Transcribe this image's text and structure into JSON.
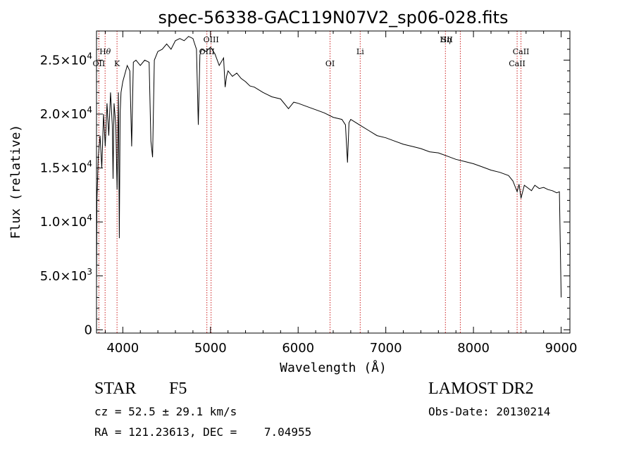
{
  "chart_data": {
    "type": "line",
    "title": "spec-56338-GAC119N07V2_sp06-028.fits",
    "xlabel": "Wavelength (Å)",
    "ylabel": "Flux (relative)",
    "xlim": [
      3700,
      9100
    ],
    "ylim": [
      -300,
      27700
    ],
    "x_ticks": [
      4000,
      5000,
      6000,
      7000,
      8000,
      9000
    ],
    "x_tick_labels": [
      "4000",
      "5000",
      "6000",
      "7000",
      "8000",
      "9000"
    ],
    "y_ticks": [
      0,
      5000,
      10000,
      15000,
      20000,
      25000
    ],
    "y_tick_labels": [
      {
        "mantissa": "0",
        "exp": ""
      },
      {
        "mantissa": "5.0×10",
        "exp": "3"
      },
      {
        "mantissa": "1.0×10",
        "exp": "4"
      },
      {
        "mantissa": "1.5×10",
        "exp": "4"
      },
      {
        "mantissa": "2.0×10",
        "exp": "4"
      },
      {
        "mantissa": "2.5×10",
        "exp": "4"
      }
    ],
    "grid": false,
    "line_color": "#000000",
    "marker_color": "#cc2222",
    "series": [
      {
        "x": [
          3700,
          3705,
          3720,
          3740,
          3760,
          3780,
          3800,
          3820,
          3840,
          3860,
          3880,
          3889,
          3900,
          3920,
          3935,
          3950,
          3960,
          3969,
          3980,
          4000,
          4050,
          4080,
          4101,
          4120,
          4150,
          4200,
          4250,
          4300,
          4320,
          4340,
          4360,
          4400,
          4450,
          4500,
          4550,
          4600,
          4650,
          4700,
          4750,
          4800,
          4820,
          4840,
          4861,
          4880,
          4900,
          4950,
          5000,
          5050,
          5100,
          5150,
          5167,
          5183,
          5200,
          5250,
          5300,
          5350,
          5400,
          5450,
          5500,
          5600,
          5700,
          5800,
          5890,
          5950,
          6000,
          6100,
          6200,
          6300,
          6400,
          6500,
          6540,
          6563,
          6580,
          6600,
          6700,
          6800,
          6900,
          7000,
          7100,
          7200,
          7300,
          7400,
          7500,
          7600,
          7700,
          7800,
          7900,
          8000,
          8100,
          8200,
          8300,
          8400,
          8450,
          8498,
          8520,
          8542,
          8580,
          8662,
          8700,
          8750,
          8800,
          8850,
          8900,
          8950,
          8980,
          9000
        ],
        "y": [
          4000,
          12000,
          16000,
          18000,
          15000,
          20000,
          17000,
          21000,
          18000,
          22000,
          19000,
          14000,
          21000,
          19000,
          13000,
          22000,
          8500,
          20000,
          22000,
          23000,
          24500,
          24000,
          17000,
          24800,
          25000,
          24500,
          25000,
          24800,
          17500,
          16000,
          25000,
          25800,
          26000,
          26500,
          26000,
          26800,
          27000,
          26800,
          27200,
          27000,
          26500,
          26000,
          19000,
          25500,
          26000,
          25800,
          26200,
          25600,
          24500,
          25200,
          22500,
          23500,
          24000,
          23500,
          23800,
          23300,
          23000,
          22600,
          22500,
          22000,
          21600,
          21400,
          20500,
          21100,
          21000,
          20700,
          20400,
          20100,
          19700,
          19500,
          19000,
          15500,
          19200,
          19500,
          19000,
          18500,
          18000,
          17800,
          17500,
          17200,
          17000,
          16800,
          16500,
          16400,
          16100,
          15800,
          15600,
          15400,
          15100,
          14800,
          14600,
          14300,
          13800,
          12800,
          13500,
          12200,
          13400,
          12900,
          13400,
          13100,
          13200,
          13000,
          12900,
          12700,
          12800,
          3000
        ]
      }
    ],
    "line_markers": [
      {
        "label": "H",
        "greek": "θ",
        "x": 3798,
        "row": "upper"
      },
      {
        "label": "OII",
        "greek": "",
        "x": 3727,
        "row": "lower"
      },
      {
        "label": "K",
        "greek": "",
        "x": 3934,
        "row": "lower"
      },
      {
        "label": "OIII",
        "greek": "",
        "x": 5007,
        "row": "top"
      },
      {
        "label": "OIII",
        "greek": "",
        "x": 4959,
        "row": "upper"
      },
      {
        "label": "OI",
        "greek": "",
        "x": 6364,
        "row": "lower"
      },
      {
        "label": "Li",
        "greek": "",
        "x": 6708,
        "row": "upper"
      },
      {
        "label": "H",
        "greek": "η",
        "x": 3835,
        "row": "top-right"
      },
      {
        "label": "SII",
        "greek": "",
        "x": 7700,
        "row": "top"
      },
      {
        "label": "CaII",
        "greek": "",
        "x": 8542,
        "row": "upper"
      },
      {
        "label": "CaII",
        "greek": "",
        "x": 8498,
        "row": "lower"
      }
    ],
    "marker_lines_x": [
      3727,
      3798,
      3934,
      4959,
      5007,
      6364,
      6708,
      7680,
      7850,
      8498,
      8542
    ]
  },
  "info": {
    "object_type": "STAR",
    "subclass": "F5",
    "survey": "LAMOST DR2",
    "cz_line": "cz = 52.5 ± 29.1 km/s",
    "obs_date_line": "Obs-Date: 20130214",
    "coords_line": "RA = 121.23613, DEC =    7.04955"
  }
}
